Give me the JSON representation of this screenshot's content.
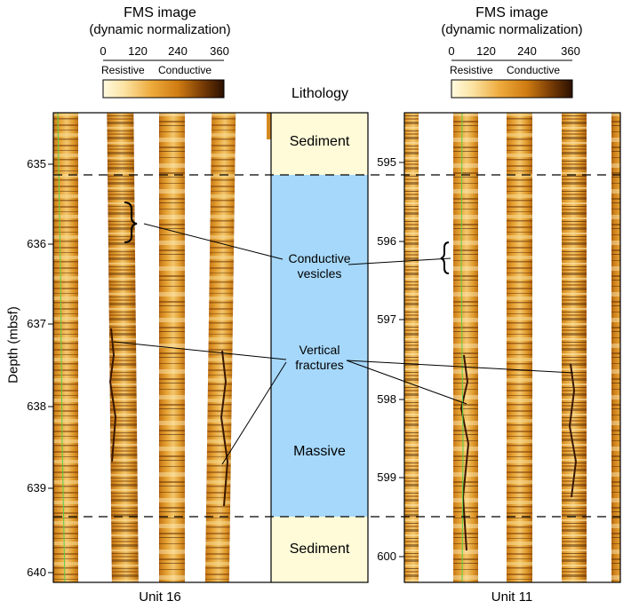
{
  "left_header": {
    "title": "FMS image",
    "subtitle": "(dynamic normalization)",
    "scale_ticks": [
      "0",
      "120",
      "240",
      "360"
    ],
    "resistive": "Resistive",
    "conductive": "Conductive"
  },
  "right_header": {
    "title": "FMS image",
    "subtitle": "(dynamic normalization)",
    "scale_ticks": [
      "0",
      "120",
      "240",
      "360"
    ],
    "resistive": "Resistive",
    "conductive": "Conductive"
  },
  "lithology_title": "Lithology",
  "y_axis_label": "Depth (mbsf)",
  "left_depth_ticks": [
    "635",
    "636",
    "637",
    "638",
    "639",
    "640"
  ],
  "right_depth_ticks": [
    "595",
    "596",
    "597",
    "598",
    "599",
    "600"
  ],
  "lithology_units": {
    "top": "Sediment",
    "middle": "Massive",
    "bottom": "Sediment"
  },
  "annotations": {
    "vesicles_line1": "Conductive",
    "vesicles_line2": "vesicles",
    "fractures_line1": "Vertical",
    "fractures_line2": "fractures"
  },
  "left_panel_label": "Unit 16",
  "right_panel_label": "Unit 11",
  "colors": {
    "sediment": "#fffbd9",
    "massive": "#a6d8fb",
    "scale_light": "#fff6c4",
    "scale_mid": "#e7a12e",
    "scale_dark": "#2f1400"
  }
}
